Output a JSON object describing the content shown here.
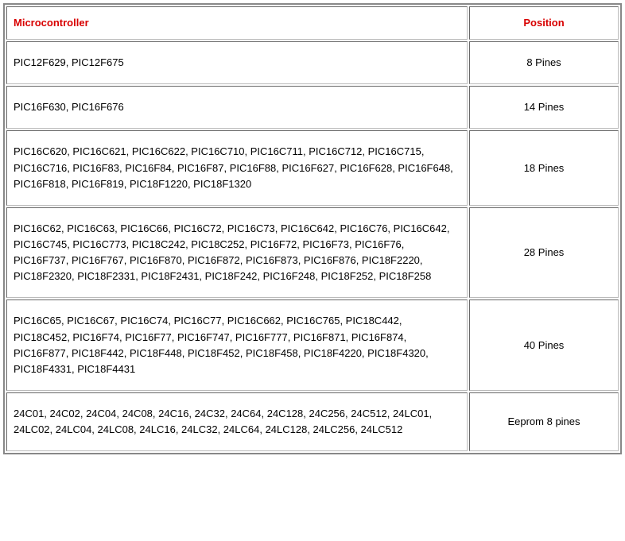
{
  "table": {
    "columns": [
      {
        "key": "microcontroller",
        "label": "Microcontroller",
        "align": "left"
      },
      {
        "key": "position",
        "label": "Position",
        "align": "center"
      }
    ],
    "header_color": "#d80000",
    "border_color": "#888888",
    "cell_border_color": "#bbbbbb",
    "background_color": "#ffffff",
    "font_family": "Verdana",
    "font_size_pt": 10,
    "line_height": 1.55,
    "rows": [
      {
        "microcontroller": "PIC12F629, PIC12F675",
        "position": "8 Pines"
      },
      {
        "microcontroller": "PIC16F630, PIC16F676",
        "position": "14 Pines"
      },
      {
        "microcontroller": "PIC16C620, PIC16C621, PIC16C622, PIC16C710, PIC16C711, PIC16C712, PIC16C715, PIC16C716, PIC16F83, PIC16F84, PIC16F87, PIC16F88, PIC16F627, PIC16F628, PIC16F648, PIC16F818, PIC16F819, PIC18F1220, PIC18F1320",
        "position": "18 Pines"
      },
      {
        "microcontroller": "PIC16C62, PIC16C63, PIC16C66, PIC16C72, PIC16C73, PIC16C642, PIC16C76, PIC16C642, PIC16C745, PIC16C773, PIC18C242, PIC18C252, PIC16F72, PIC16F73, PIC16F76, PIC16F737, PIC16F767, PIC16F870, PIC16F872, PIC16F873, PIC16F876, PIC18F2220, PIC18F2320, PIC18F2331, PIC18F2431, PIC18F242, PIC16F248, PIC18F252, PIC18F258",
        "position": "28 Pines"
      },
      {
        "microcontroller": "PIC16C65, PIC16C67, PIC16C74, PIC16C77, PIC16C662, PIC16C765, PIC18C442, PIC18C452, PIC16F74, PIC16F77, PIC16F747, PIC16F777, PIC16F871, PIC16F874, PIC16F877, PIC18F442, PIC18F448, PIC18F452, PIC18F458, PIC18F4220, PIC18F4320, PIC18F4331, PIC18F4431",
        "position": "40 Pines"
      },
      {
        "microcontroller": "24C01, 24C02, 24C04, 24C08, 24C16, 24C32, 24C64, 24C128, 24C256, 24C512, 24LC01, 24LC02, 24LC04, 24LC08, 24LC16, 24LC32, 24LC64, 24LC128, 24LC256, 24LC512",
        "position": "Eeprom 8 pines"
      }
    ]
  }
}
